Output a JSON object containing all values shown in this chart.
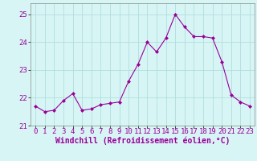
{
  "x": [
    0,
    1,
    2,
    3,
    4,
    5,
    6,
    7,
    8,
    9,
    10,
    11,
    12,
    13,
    14,
    15,
    16,
    17,
    18,
    19,
    20,
    21,
    22,
    23
  ],
  "y": [
    21.7,
    21.5,
    21.55,
    21.9,
    22.15,
    21.55,
    21.6,
    21.75,
    21.8,
    21.85,
    22.6,
    23.2,
    24.0,
    23.65,
    24.15,
    25.0,
    24.55,
    24.2,
    24.2,
    24.15,
    23.3,
    22.1,
    21.85,
    21.7
  ],
  "line_color": "#990099",
  "marker": "D",
  "marker_size": 2.0,
  "bg_color": "#d8f5f5",
  "grid_color": "#b0dede",
  "xlabel": "Windchill (Refroidissement éolien,°C)",
  "xlabel_fontsize": 7,
  "tick_fontsize": 6.5,
  "ylim": [
    21.0,
    25.4
  ],
  "yticks": [
    21,
    22,
    23,
    24,
    25
  ],
  "xlim": [
    -0.5,
    23.5
  ]
}
